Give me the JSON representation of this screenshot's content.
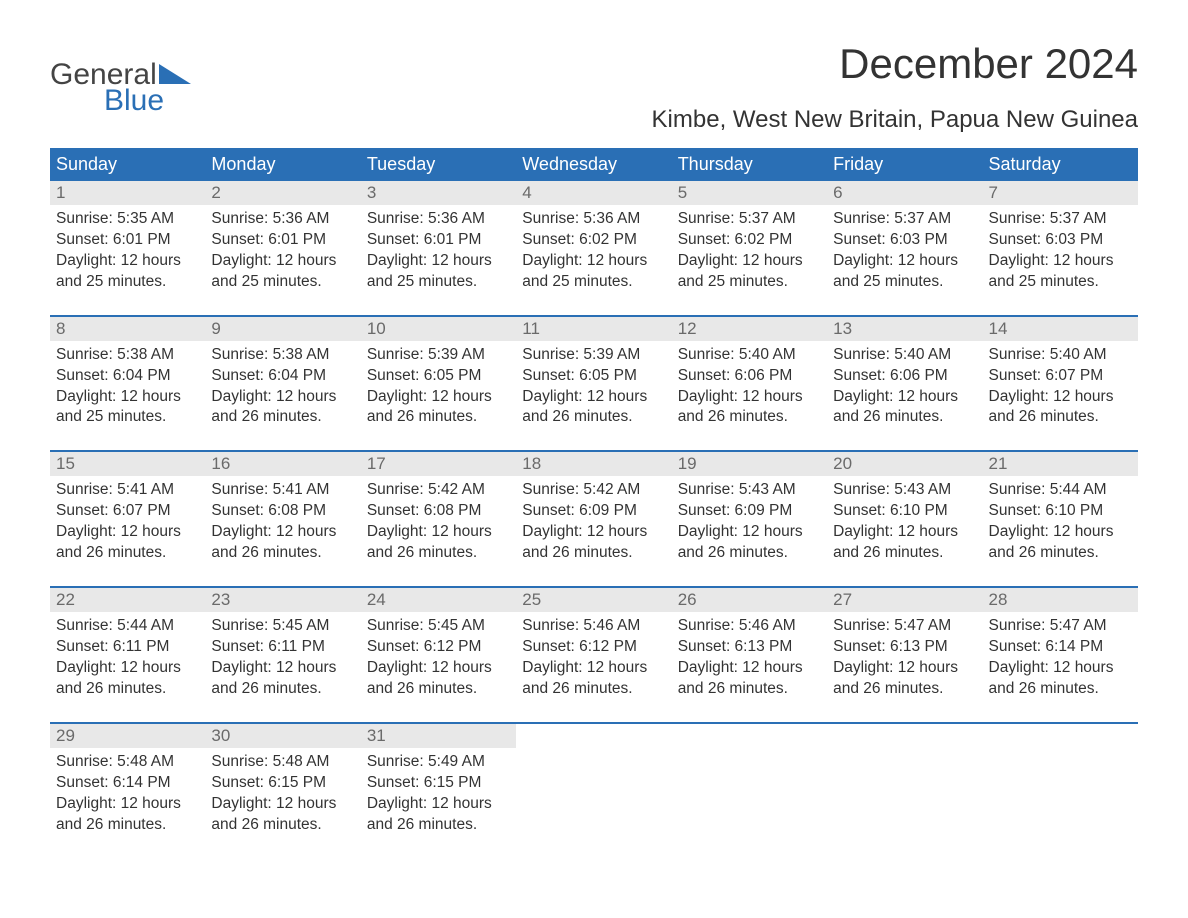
{
  "logo": {
    "word1": "General",
    "word2": "Blue"
  },
  "title": "December 2024",
  "location": "Kimbe, West New Britain, Papua New Guinea",
  "colors": {
    "header_bg": "#2a6fb5",
    "header_text": "#ffffff",
    "daynum_bg": "#e8e8e8",
    "daynum_text": "#6a6a6a",
    "body_text": "#333333",
    "week_border": "#2a6fb5",
    "logo_gray": "#444444",
    "logo_blue": "#2a6fb5",
    "background": "#ffffff"
  },
  "fonts": {
    "title_size_pt": 32,
    "location_size_pt": 18,
    "weekday_size_pt": 14,
    "daynum_size_pt": 13,
    "body_size_pt": 12
  },
  "weekdays": [
    "Sunday",
    "Monday",
    "Tuesday",
    "Wednesday",
    "Thursday",
    "Friday",
    "Saturday"
  ],
  "weeks": [
    [
      {
        "n": "1",
        "sunrise": "Sunrise: 5:35 AM",
        "sunset": "Sunset: 6:01 PM",
        "d1": "Daylight: 12 hours",
        "d2": "and 25 minutes."
      },
      {
        "n": "2",
        "sunrise": "Sunrise: 5:36 AM",
        "sunset": "Sunset: 6:01 PM",
        "d1": "Daylight: 12 hours",
        "d2": "and 25 minutes."
      },
      {
        "n": "3",
        "sunrise": "Sunrise: 5:36 AM",
        "sunset": "Sunset: 6:01 PM",
        "d1": "Daylight: 12 hours",
        "d2": "and 25 minutes."
      },
      {
        "n": "4",
        "sunrise": "Sunrise: 5:36 AM",
        "sunset": "Sunset: 6:02 PM",
        "d1": "Daylight: 12 hours",
        "d2": "and 25 minutes."
      },
      {
        "n": "5",
        "sunrise": "Sunrise: 5:37 AM",
        "sunset": "Sunset: 6:02 PM",
        "d1": "Daylight: 12 hours",
        "d2": "and 25 minutes."
      },
      {
        "n": "6",
        "sunrise": "Sunrise: 5:37 AM",
        "sunset": "Sunset: 6:03 PM",
        "d1": "Daylight: 12 hours",
        "d2": "and 25 minutes."
      },
      {
        "n": "7",
        "sunrise": "Sunrise: 5:37 AM",
        "sunset": "Sunset: 6:03 PM",
        "d1": "Daylight: 12 hours",
        "d2": "and 25 minutes."
      }
    ],
    [
      {
        "n": "8",
        "sunrise": "Sunrise: 5:38 AM",
        "sunset": "Sunset: 6:04 PM",
        "d1": "Daylight: 12 hours",
        "d2": "and 25 minutes."
      },
      {
        "n": "9",
        "sunrise": "Sunrise: 5:38 AM",
        "sunset": "Sunset: 6:04 PM",
        "d1": "Daylight: 12 hours",
        "d2": "and 26 minutes."
      },
      {
        "n": "10",
        "sunrise": "Sunrise: 5:39 AM",
        "sunset": "Sunset: 6:05 PM",
        "d1": "Daylight: 12 hours",
        "d2": "and 26 minutes."
      },
      {
        "n": "11",
        "sunrise": "Sunrise: 5:39 AM",
        "sunset": "Sunset: 6:05 PM",
        "d1": "Daylight: 12 hours",
        "d2": "and 26 minutes."
      },
      {
        "n": "12",
        "sunrise": "Sunrise: 5:40 AM",
        "sunset": "Sunset: 6:06 PM",
        "d1": "Daylight: 12 hours",
        "d2": "and 26 minutes."
      },
      {
        "n": "13",
        "sunrise": "Sunrise: 5:40 AM",
        "sunset": "Sunset: 6:06 PM",
        "d1": "Daylight: 12 hours",
        "d2": "and 26 minutes."
      },
      {
        "n": "14",
        "sunrise": "Sunrise: 5:40 AM",
        "sunset": "Sunset: 6:07 PM",
        "d1": "Daylight: 12 hours",
        "d2": "and 26 minutes."
      }
    ],
    [
      {
        "n": "15",
        "sunrise": "Sunrise: 5:41 AM",
        "sunset": "Sunset: 6:07 PM",
        "d1": "Daylight: 12 hours",
        "d2": "and 26 minutes."
      },
      {
        "n": "16",
        "sunrise": "Sunrise: 5:41 AM",
        "sunset": "Sunset: 6:08 PM",
        "d1": "Daylight: 12 hours",
        "d2": "and 26 minutes."
      },
      {
        "n": "17",
        "sunrise": "Sunrise: 5:42 AM",
        "sunset": "Sunset: 6:08 PM",
        "d1": "Daylight: 12 hours",
        "d2": "and 26 minutes."
      },
      {
        "n": "18",
        "sunrise": "Sunrise: 5:42 AM",
        "sunset": "Sunset: 6:09 PM",
        "d1": "Daylight: 12 hours",
        "d2": "and 26 minutes."
      },
      {
        "n": "19",
        "sunrise": "Sunrise: 5:43 AM",
        "sunset": "Sunset: 6:09 PM",
        "d1": "Daylight: 12 hours",
        "d2": "and 26 minutes."
      },
      {
        "n": "20",
        "sunrise": "Sunrise: 5:43 AM",
        "sunset": "Sunset: 6:10 PM",
        "d1": "Daylight: 12 hours",
        "d2": "and 26 minutes."
      },
      {
        "n": "21",
        "sunrise": "Sunrise: 5:44 AM",
        "sunset": "Sunset: 6:10 PM",
        "d1": "Daylight: 12 hours",
        "d2": "and 26 minutes."
      }
    ],
    [
      {
        "n": "22",
        "sunrise": "Sunrise: 5:44 AM",
        "sunset": "Sunset: 6:11 PM",
        "d1": "Daylight: 12 hours",
        "d2": "and 26 minutes."
      },
      {
        "n": "23",
        "sunrise": "Sunrise: 5:45 AM",
        "sunset": "Sunset: 6:11 PM",
        "d1": "Daylight: 12 hours",
        "d2": "and 26 minutes."
      },
      {
        "n": "24",
        "sunrise": "Sunrise: 5:45 AM",
        "sunset": "Sunset: 6:12 PM",
        "d1": "Daylight: 12 hours",
        "d2": "and 26 minutes."
      },
      {
        "n": "25",
        "sunrise": "Sunrise: 5:46 AM",
        "sunset": "Sunset: 6:12 PM",
        "d1": "Daylight: 12 hours",
        "d2": "and 26 minutes."
      },
      {
        "n": "26",
        "sunrise": "Sunrise: 5:46 AM",
        "sunset": "Sunset: 6:13 PM",
        "d1": "Daylight: 12 hours",
        "d2": "and 26 minutes."
      },
      {
        "n": "27",
        "sunrise": "Sunrise: 5:47 AM",
        "sunset": "Sunset: 6:13 PM",
        "d1": "Daylight: 12 hours",
        "d2": "and 26 minutes."
      },
      {
        "n": "28",
        "sunrise": "Sunrise: 5:47 AM",
        "sunset": "Sunset: 6:14 PM",
        "d1": "Daylight: 12 hours",
        "d2": "and 26 minutes."
      }
    ],
    [
      {
        "n": "29",
        "sunrise": "Sunrise: 5:48 AM",
        "sunset": "Sunset: 6:14 PM",
        "d1": "Daylight: 12 hours",
        "d2": "and 26 minutes."
      },
      {
        "n": "30",
        "sunrise": "Sunrise: 5:48 AM",
        "sunset": "Sunset: 6:15 PM",
        "d1": "Daylight: 12 hours",
        "d2": "and 26 minutes."
      },
      {
        "n": "31",
        "sunrise": "Sunrise: 5:49 AM",
        "sunset": "Sunset: 6:15 PM",
        "d1": "Daylight: 12 hours",
        "d2": "and 26 minutes."
      },
      {
        "n": "",
        "sunrise": "",
        "sunset": "",
        "d1": "",
        "d2": ""
      },
      {
        "n": "",
        "sunrise": "",
        "sunset": "",
        "d1": "",
        "d2": ""
      },
      {
        "n": "",
        "sunrise": "",
        "sunset": "",
        "d1": "",
        "d2": ""
      },
      {
        "n": "",
        "sunrise": "",
        "sunset": "",
        "d1": "",
        "d2": ""
      }
    ]
  ]
}
